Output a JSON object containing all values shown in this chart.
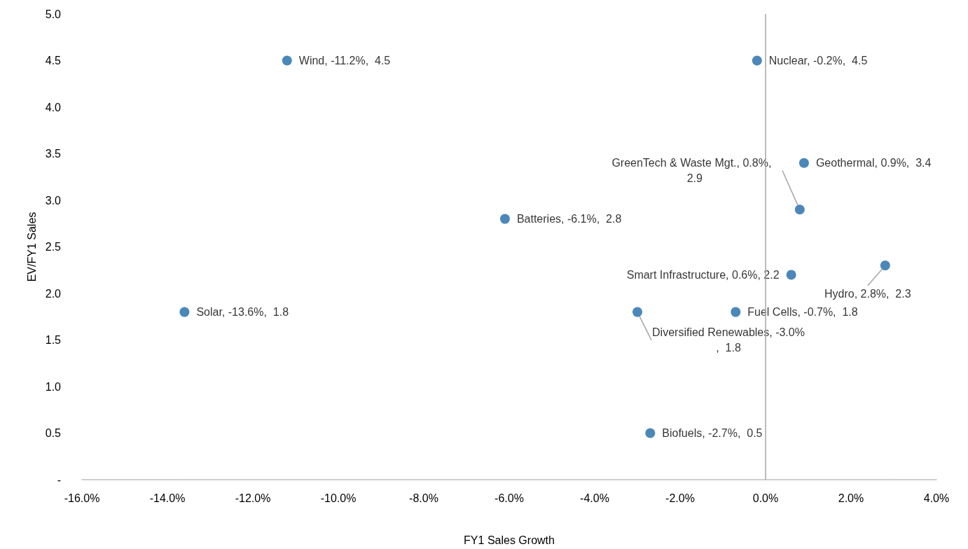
{
  "chart_data": {
    "type": "scatter",
    "xlabel": "FY1 Sales Growth",
    "ylabel": "EV/FY1 Sales",
    "x": [
      -11.2,
      -0.2,
      0.8,
      0.9,
      -6.1,
      0.6,
      2.8,
      -13.6,
      -0.7,
      -3.0,
      -2.7
    ],
    "values": [
      4.5,
      4.5,
      2.9,
      3.4,
      2.8,
      2.2,
      2.3,
      1.8,
      1.8,
      1.8,
      0.5
    ],
    "value_labels": [
      "Wind, -11.2%,  4.5",
      "Nuclear, -0.2%,  4.5",
      "GreenTech & Waste Mgt., 0.8%,  2.9",
      "Geothermal, 0.9%,  3.4",
      "Batteries, -6.1%,  2.8",
      "Smart Infrastructure, 0.6%, 2.2",
      "Hydro, 2.8%,  2.3",
      "Solar, -13.6%,  1.8",
      "Fuel Cells, -0.7%,  1.8",
      "Diversified Renewables, -3.0%,  1.8",
      "Biofuels, -2.7%,  0.5"
    ],
    "color": "#1f69a8",
    "marker": "circle",
    "grid": false,
    "xlim": [
      -16,
      4
    ],
    "xticks": [
      {
        "value": -16,
        "label": "-16.0%"
      },
      {
        "value": -14,
        "label": "-14.0%"
      },
      {
        "value": -12,
        "label": "-12.0%"
      },
      {
        "value": -10,
        "label": "-10.0%"
      },
      {
        "value": -8,
        "label": "-8.0%"
      },
      {
        "value": -6,
        "label": "-6.0%"
      },
      {
        "value": -4,
        "label": "-4.0%"
      },
      {
        "value": -2,
        "label": "-2.0%"
      },
      {
        "value": 0,
        "label": "0.0%"
      },
      {
        "value": 2,
        "label": "2.0%"
      },
      {
        "value": 4,
        "label": "4.0%"
      }
    ],
    "ylim": [
      0,
      5
    ],
    "yticks": [
      {
        "value": 0,
        "label": "-"
      },
      0.5,
      {
        "value": 1,
        "label": "1.0"
      },
      1.5,
      {
        "value": 2,
        "label": "2.0"
      },
      2.5,
      {
        "value": 3,
        "label": "3.0"
      },
      3.5,
      {
        "value": 4,
        "label": "4.0"
      },
      4.5,
      {
        "value": 5,
        "label": "5.0"
      }
    ],
    "ref_lines": [
      {
        "axis": "x",
        "value": 0,
        "label": null,
        "color": "#a6a6a6"
      }
    ]
  }
}
